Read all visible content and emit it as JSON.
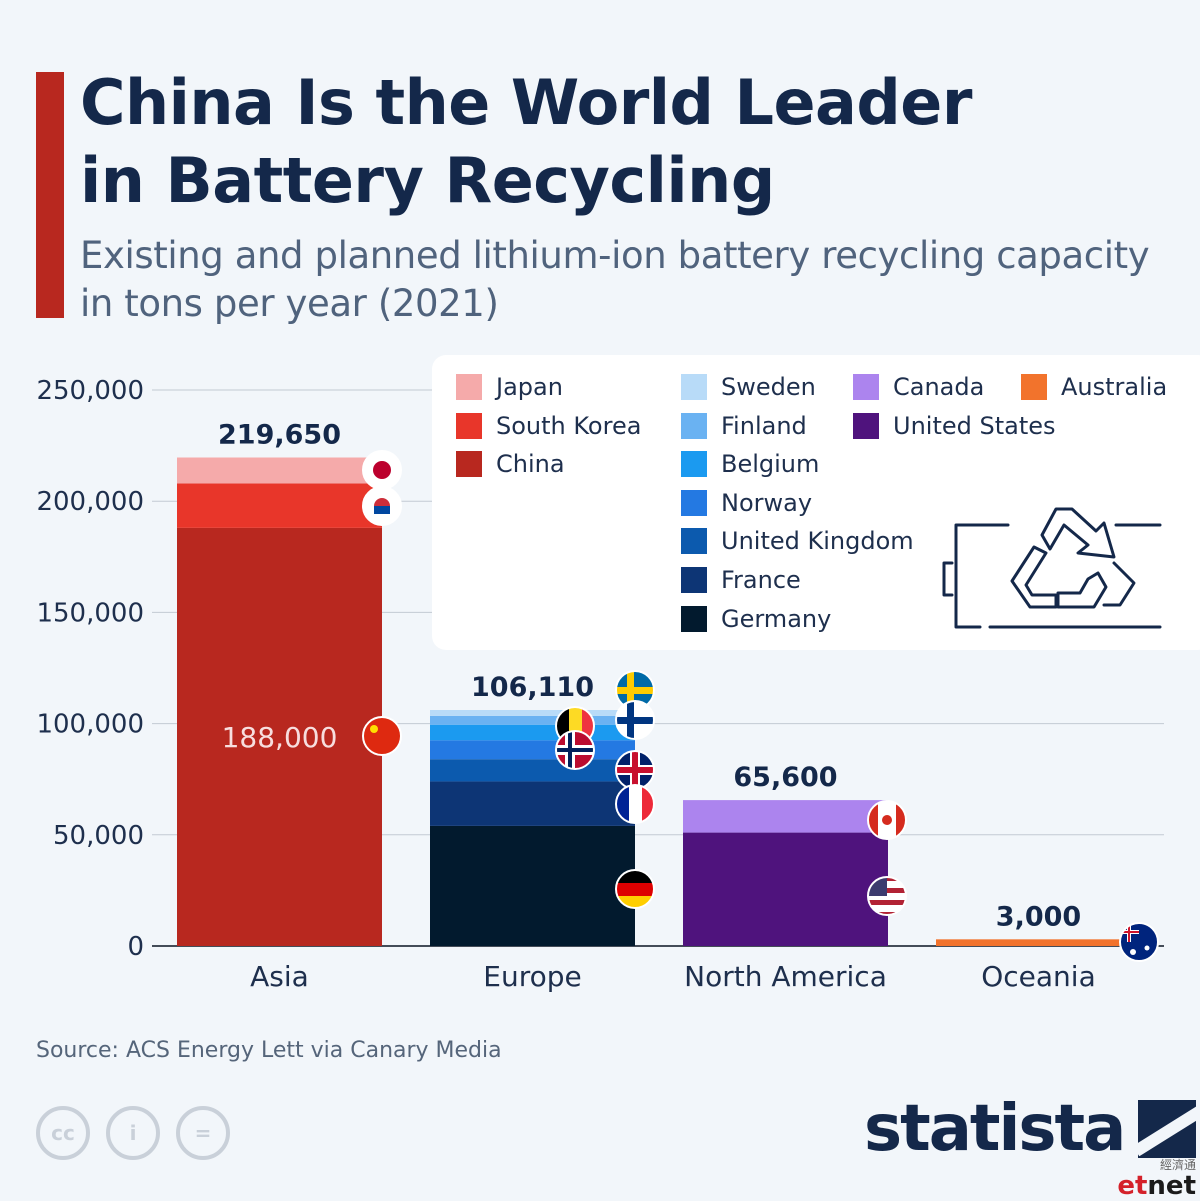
{
  "title_lines": [
    "China Is the World Leader",
    "in Battery Recycling"
  ],
  "subtitle_lines": [
    "Existing and planned lithium-ion battery recycling capacity",
    "in tons per year (2021)"
  ],
  "source": "Source: ACS Energy Lett via Canary Media",
  "brand": "statista",
  "watermark": {
    "chinese": "經濟通",
    "latin_a": "et",
    "latin_b": "net"
  },
  "license_icons": [
    {
      "name": "cc-icon",
      "glyph": "cc"
    },
    {
      "name": "attribution-icon",
      "glyph": "i"
    },
    {
      "name": "no-derivatives-icon",
      "glyph": "="
    }
  ],
  "colors": {
    "accent": "#b8281f",
    "title": "#14284a",
    "gridline": "#c3cad3",
    "Japan": "#f5aaaa",
    "South Korea": "#e8362a",
    "China": "#b8281f",
    "Sweden": "#b8dbf8",
    "Finland": "#6ab2f2",
    "Belgium": "#1b9af0",
    "Norway": "#2479e2",
    "United Kingdom": "#0c5aae",
    "France": "#0d3575",
    "Germany": "#021a2e",
    "Canada": "#ac84ee",
    "United States": "#4f137d",
    "Australia": "#f2732c"
  },
  "legend": {
    "columns": [
      [
        "Japan",
        "South Korea",
        "China"
      ],
      [
        "Sweden",
        "Finland",
        "Belgium",
        "Norway",
        "United Kingdom",
        "France",
        "Germany"
      ],
      [
        "Canada",
        "United States"
      ],
      [
        "Australia"
      ]
    ]
  },
  "chart_data": {
    "type": "bar",
    "stacked": true,
    "title": "China Is the World Leader in Battery Recycling",
    "subtitle": "Existing and planned lithium-ion battery recycling capacity in tons per year (2021)",
    "categories": [
      "Asia",
      "Europe",
      "North America",
      "Oceania"
    ],
    "totals": [
      219650,
      106110,
      65600,
      3000
    ],
    "total_labels": [
      "219,650",
      "106,110",
      "65,600",
      "3,000"
    ],
    "ylim": [
      0,
      250000
    ],
    "yticks": [
      0,
      50000,
      100000,
      150000,
      200000,
      250000
    ],
    "ytick_labels": [
      "0",
      "50,000",
      "100,000",
      "150,000",
      "200,000",
      "250,000"
    ],
    "grid": true,
    "legend_position": "top-right",
    "stacks": [
      [
        {
          "name": "China",
          "value": 188000,
          "label": "188,000"
        },
        {
          "name": "South Korea",
          "value": 20000
        },
        {
          "name": "Japan",
          "value": 11650
        }
      ],
      [
        {
          "name": "Germany",
          "value": 54000
        },
        {
          "name": "France",
          "value": 20000
        },
        {
          "name": "United Kingdom",
          "value": 10000
        },
        {
          "name": "Norway",
          "value": 8500
        },
        {
          "name": "Belgium",
          "value": 7000
        },
        {
          "name": "Finland",
          "value": 4000
        },
        {
          "name": "Sweden",
          "value": 2610
        }
      ],
      [
        {
          "name": "United States",
          "value": 51000
        },
        {
          "name": "Canada",
          "value": 14600
        }
      ],
      [
        {
          "name": "Australia",
          "value": 3000
        }
      ]
    ]
  }
}
